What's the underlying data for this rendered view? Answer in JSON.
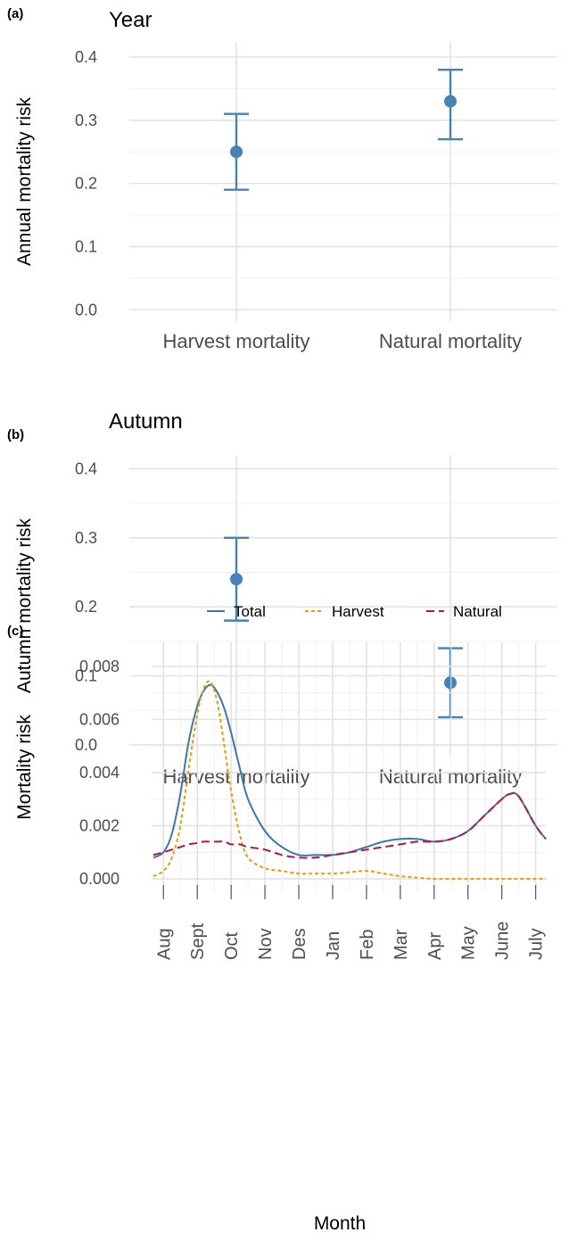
{
  "chart_data": [
    {
      "type": "errorbar",
      "panel_label": "(a)",
      "title": "Year",
      "ylabel": "Annual mortality risk",
      "categories": [
        "Harvest mortality",
        "Natural mortality"
      ],
      "values": [
        0.25,
        0.33
      ],
      "lower": [
        0.19,
        0.27
      ],
      "upper": [
        0.31,
        0.38
      ],
      "color": "#4682b4",
      "ylim": [
        -0.018,
        0.424
      ],
      "yticks": [
        {
          "value": 0,
          "label": "0.0"
        },
        0.1,
        0.2,
        0.3,
        0.4
      ],
      "grid": true
    },
    {
      "type": "errorbar",
      "panel_label": "(b)",
      "title": "Autumn",
      "ylabel": "Autumn mortality risk",
      "categories": [
        "Harvest mortality",
        "Natural mortality"
      ],
      "values": [
        0.24,
        0.09
      ],
      "lower": [
        0.18,
        0.04
      ],
      "upper": [
        0.3,
        0.14
      ],
      "color": "#4682b4",
      "ylim": [
        -0.017,
        0.42
      ],
      "yticks": [
        {
          "value": 0,
          "label": "0.0"
        },
        0.1,
        0.2,
        0.3,
        0.4
      ],
      "grid": true
    },
    {
      "type": "line",
      "panel_label": "(c)",
      "xlabel": "Month",
      "ylabel": "Mortality risk",
      "legend": "top",
      "grid": true,
      "x": [
        0.7,
        1,
        1.25,
        1.5,
        1.75,
        2,
        2.2,
        2.4,
        2.6,
        2.8,
        3,
        3.25,
        3.5,
        4,
        4.5,
        5,
        5.5,
        6,
        6.5,
        7,
        7.5,
        8,
        8.5,
        9,
        9.5,
        10,
        10.5,
        11,
        11.25,
        11.5,
        12,
        12.3
      ],
      "series": [
        {
          "name": "Total",
          "color": "#3a78b0",
          "linestyle": "solid",
          "values": [
            0.0008,
            0.001,
            0.0017,
            0.0032,
            0.0052,
            0.0065,
            0.0071,
            0.0073,
            0.007,
            0.0064,
            0.0055,
            0.0042,
            0.003,
            0.0018,
            0.0012,
            0.0009,
            0.0009,
            0.0009,
            0.001,
            0.0012,
            0.0014,
            0.0015,
            0.0015,
            0.0014,
            0.0015,
            0.0018,
            0.0024,
            0.003,
            0.0032,
            0.0031,
            0.002,
            0.0015
          ]
        },
        {
          "name": "Harvest",
          "color": "#e69f00",
          "linestyle": "dotted",
          "values": [
            0.0001,
            0.0003,
            0.0008,
            0.002,
            0.0042,
            0.0062,
            0.0072,
            0.0074,
            0.0066,
            0.005,
            0.0033,
            0.0017,
            0.0008,
            0.0004,
            0.0003,
            0.0002,
            0.0002,
            0.0002,
            0.00025,
            0.0003,
            0.0002,
            0.0001,
            5e-05,
            0,
            0,
            0,
            0,
            0,
            0,
            0,
            0,
            0
          ]
        },
        {
          "name": "Natural",
          "color": "#b5144a",
          "linestyle": "dashed",
          "values": [
            0.0009,
            0.001,
            0.0011,
            0.0012,
            0.0013,
            0.00135,
            0.0014,
            0.0014,
            0.0014,
            0.0014,
            0.0013,
            0.0013,
            0.0012,
            0.0011,
            0.0009,
            0.0008,
            0.0008,
            0.0009,
            0.001,
            0.0011,
            0.0012,
            0.0013,
            0.0014,
            0.0014,
            0.0015,
            0.0018,
            0.0024,
            0.003,
            0.0032,
            0.0031,
            0.002,
            0.0015
          ]
        }
      ],
      "xlim": [
        0.65,
        12.3
      ],
      "xticks": [
        {
          "value": 1,
          "label": "Aug"
        },
        {
          "value": 2,
          "label": "Sept"
        },
        {
          "value": 3,
          "label": "Oct"
        },
        {
          "value": 4,
          "label": "Nov"
        },
        {
          "value": 5,
          "label": "Des"
        },
        {
          "value": 6,
          "label": "Jan"
        },
        {
          "value": 7,
          "label": "Feb"
        },
        {
          "value": 8,
          "label": "Mar"
        },
        {
          "value": 9,
          "label": "Apr"
        },
        {
          "value": 10,
          "label": "May"
        },
        {
          "value": 11,
          "label": "June"
        },
        {
          "value": 12,
          "label": "July"
        }
      ],
      "ylim": [
        -0.0005,
        0.0089
      ],
      "yticks": [
        {
          "value": 0,
          "label": "0.000"
        },
        {
          "value": 0.002,
          "label": "0.002"
        },
        {
          "value": 0.004,
          "label": "0.004"
        },
        {
          "value": 0.006,
          "label": "0.006"
        },
        {
          "value": 0.008,
          "label": "0.008"
        }
      ]
    }
  ]
}
